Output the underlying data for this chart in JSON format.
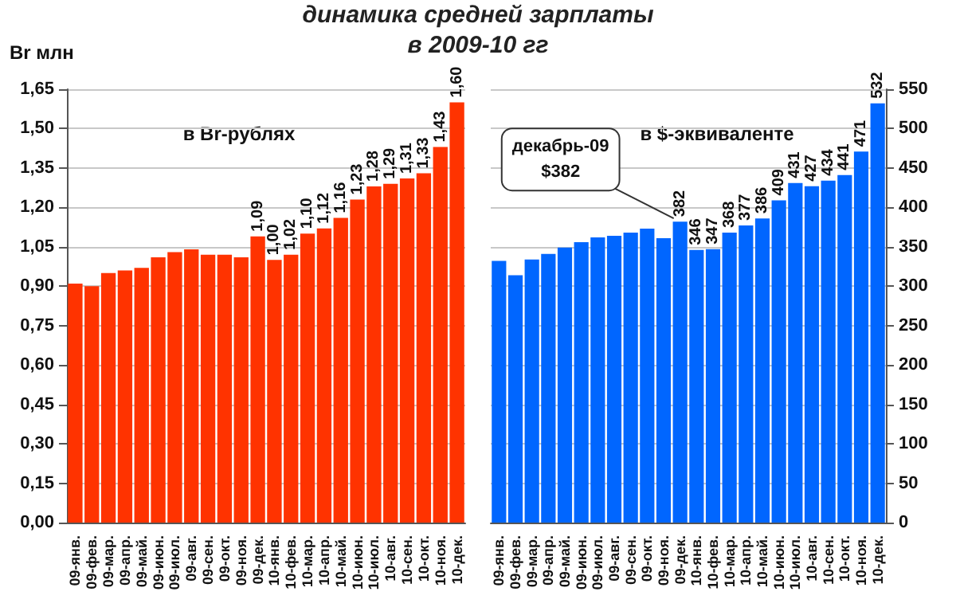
{
  "chart_data": [
    {
      "type": "bar",
      "title": "динамика средней зарплаты\nв 2009-10 гг",
      "ylabel": "Br млн",
      "subtitle": "в Br-рублях",
      "categories": [
        "09-янв.",
        "09-фев.",
        "09-мар.",
        "09-апр.",
        "09-май.",
        "09-июн.",
        "09-июл.",
        "09-авг.",
        "09-сен.",
        "09-окт.",
        "09-ноя.",
        "09-дек.",
        "10-янв.",
        "10-фев.",
        "10-мар.",
        "10-апр.",
        "10-май.",
        "10-июн.",
        "10-июл.",
        "10-авг.",
        "10-сен.",
        "10-окт.",
        "10-ноя.",
        "10-дек."
      ],
      "values": [
        0.91,
        0.9,
        0.95,
        0.96,
        0.97,
        1.01,
        1.03,
        1.04,
        1.02,
        1.02,
        1.01,
        1.09,
        1.0,
        1.02,
        1.1,
        1.12,
        1.16,
        1.23,
        1.28,
        1.29,
        1.31,
        1.33,
        1.43,
        1.6
      ],
      "value_labels": [
        null,
        null,
        null,
        null,
        null,
        null,
        null,
        null,
        null,
        null,
        null,
        "1,09",
        "1,00",
        "1,02",
        "1,10",
        "1,12",
        "1,16",
        "1,23",
        "1,28",
        "1,29",
        "1,31",
        "1,33",
        "1,43",
        "1,60"
      ],
      "color": "#ff3300",
      "ylim": [
        0,
        1.65
      ],
      "yticks": [
        {
          "value": 0,
          "label": "0,00"
        },
        {
          "value": 0.15,
          "label": "0,15"
        },
        {
          "value": 0.3,
          "label": "0,30"
        },
        {
          "value": 0.45,
          "label": "0,45"
        },
        {
          "value": 0.6,
          "label": "0,60"
        },
        {
          "value": 0.75,
          "label": "0,75"
        },
        {
          "value": 0.9,
          "label": "0,90"
        },
        {
          "value": 1.05,
          "label": "1,05"
        },
        {
          "value": 1.2,
          "label": "1,20"
        },
        {
          "value": 1.35,
          "label": "1,35"
        },
        {
          "value": 1.5,
          "label": "1,50"
        },
        {
          "value": 1.65,
          "label": "1,65"
        }
      ],
      "grid": "y"
    },
    {
      "type": "bar",
      "subtitle": "в $-эквиваленте",
      "categories": [
        "09-янв.",
        "09-фев.",
        "09-мар.",
        "09-апр.",
        "09-май.",
        "09-июн.",
        "09-июл.",
        "09-авг.",
        "09-сен.",
        "09-окт.",
        "09-ноя.",
        "09-дек.",
        "10-янв.",
        "10-фев.",
        "10-мар.",
        "10-апр.",
        "10-май.",
        "10-июн.",
        "10-июл.",
        "10-авг.",
        "10-сен.",
        "10-окт.",
        "10-ноя.",
        "10-дек."
      ],
      "series": [
        {
          "color": "#0066ff",
          "values": [
            332,
            314,
            334,
            341,
            349,
            356,
            362,
            364,
            368,
            373,
            361,
            382,
            346,
            347,
            368,
            377,
            386,
            409,
            431,
            427,
            434,
            441,
            471,
            532
          ],
          "value_labels": [
            null,
            null,
            null,
            null,
            null,
            null,
            null,
            null,
            null,
            null,
            null,
            "382",
            "346",
            "347",
            "368",
            "377",
            "386",
            "409",
            "431",
            "427",
            "434",
            "441",
            "471",
            "532"
          ]
        }
      ],
      "ylim": [
        0,
        550
      ],
      "yticks": [
        0,
        50,
        100,
        150,
        200,
        250,
        300,
        350,
        400,
        450,
        500,
        550
      ],
      "annotations": [
        {
          "text": "декабрь-09\n$382",
          "x": "09-дек.",
          "y": 382
        }
      ],
      "grid": "y"
    }
  ]
}
